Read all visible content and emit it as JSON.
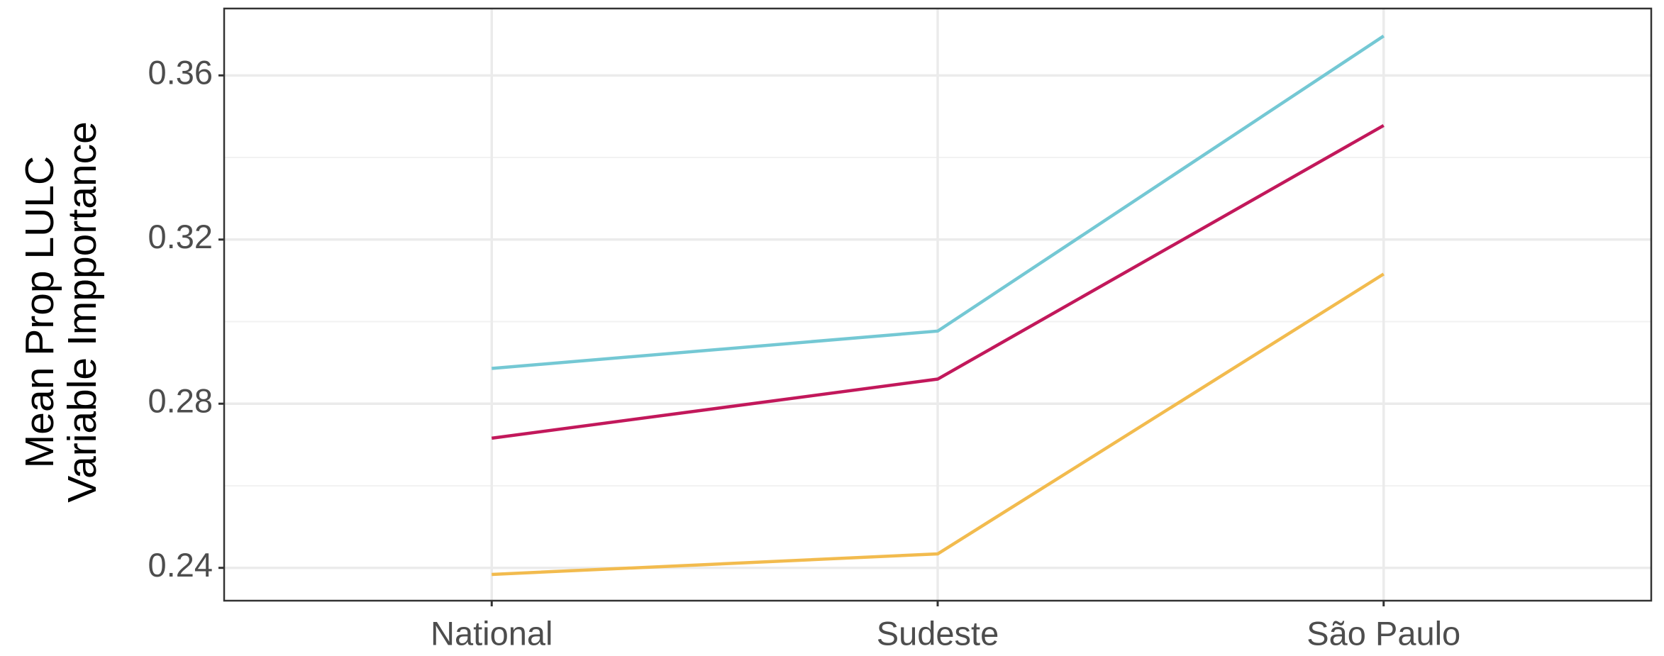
{
  "chart_data": {
    "type": "line",
    "ylabel": [
      "Mean Prop LULC",
      "Variable Impportance"
    ],
    "categories": [
      "National",
      "Sudeste",
      "São Paulo"
    ],
    "series": [
      {
        "color": "#74c8d4",
        "values": [
          0.2886,
          0.2977,
          0.3696
        ]
      },
      {
        "color": "#c2185b",
        "values": [
          0.2716,
          0.286,
          0.3478
        ]
      },
      {
        "color": "#f2bb4e",
        "values": [
          0.2384,
          0.2434,
          0.3116
        ]
      }
    ],
    "ylim": [
      0.232,
      0.3763
    ],
    "yticks": [
      {
        "value": 0.24,
        "label": "0.24"
      },
      {
        "value": 0.28,
        "label": "0.28"
      },
      {
        "value": 0.32,
        "label": "0.32"
      },
      {
        "value": 0.36,
        "label": "0.36"
      }
    ],
    "minor_yticks": [
      0.26,
      0.3,
      0.34
    ],
    "grid": true
  }
}
